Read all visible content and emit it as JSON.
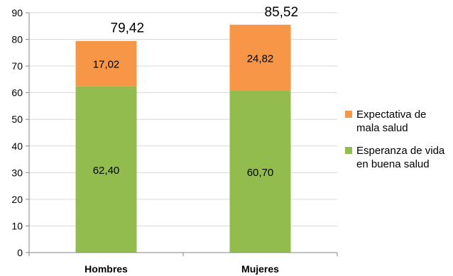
{
  "chart_data": {
    "type": "bar",
    "stacked": true,
    "categories": [
      "Hombres",
      "Mujeres"
    ],
    "series": [
      {
        "name": "Esperanza de vida en buena salud",
        "values": [
          62.4,
          60.7
        ],
        "labels": [
          "62,40",
          "60,70"
        ],
        "color": "#92BD4E"
      },
      {
        "name": "Expectativa de mala salud",
        "values": [
          17.02,
          24.82
        ],
        "labels": [
          "17,02",
          "24,82"
        ],
        "color": "#F79646"
      }
    ],
    "totals": [
      79.42,
      85.52
    ],
    "total_labels": [
      "79,42",
      "85,52"
    ],
    "ylim": [
      0,
      90
    ],
    "yticks": [
      "0",
      "10",
      "20",
      "30",
      "40",
      "50",
      "60",
      "70",
      "80",
      "90"
    ],
    "grid": true,
    "legend": "right",
    "legend_items": [
      "Expectativa de mala salud",
      "Esperanza de vida en buena salud"
    ],
    "legend_lines": [
      [
        "Expectativa de",
        "mala salud"
      ],
      [
        "Esperanza de vida",
        "en buena salud"
      ]
    ],
    "legend_colors": [
      "#F79646",
      "#92BD4E"
    ],
    "title": "",
    "xlabel": "",
    "ylabel": ""
  }
}
